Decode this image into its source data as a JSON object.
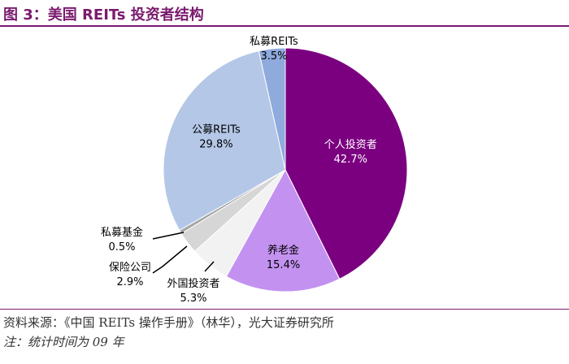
{
  "header": {
    "title": "图 3：美国 REITs 投资者结构"
  },
  "chart_data": {
    "type": "pie",
    "slices": [
      {
        "name": "个人投资者",
        "value": 42.7,
        "label": "42.7%",
        "color": "#7b0080",
        "text_color": "#ffffff"
      },
      {
        "name": "养老金",
        "value": 15.4,
        "label": "15.4%",
        "color": "#c392f0",
        "text_color": "#000000"
      },
      {
        "name": "外国投资者",
        "value": 5.3,
        "label": "5.3%",
        "color": "#f2f2f2",
        "text_color": "#000000"
      },
      {
        "name": "保险公司",
        "value": 2.9,
        "label": "2.9%",
        "color": "#d6d6d6",
        "text_color": "#000000"
      },
      {
        "name": "私募基金",
        "value": 0.5,
        "label": "0.5%",
        "color": "#a6a6a6",
        "text_color": "#000000"
      },
      {
        "name": "公募REITs",
        "value": 29.8,
        "label": "29.8%",
        "color": "#b4c7e7",
        "text_color": "#000000"
      },
      {
        "name": "私募REITs",
        "value": 3.5,
        "label": "3.5%",
        "color": "#8faadc",
        "text_color": "#000000"
      }
    ]
  },
  "footer": {
    "source": "资料来源：《中国 REITs 操作手册》（林华），光大证券研究所",
    "note": "注：统计时间为 09 年"
  }
}
